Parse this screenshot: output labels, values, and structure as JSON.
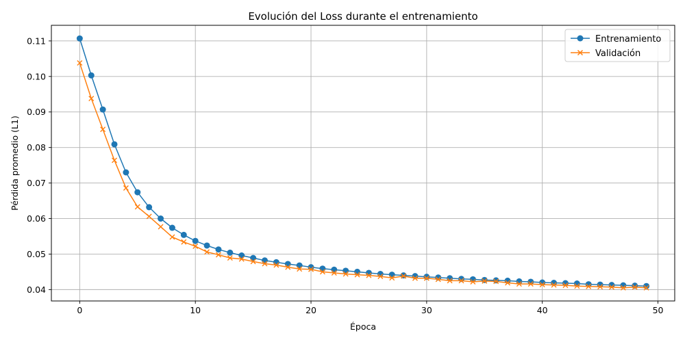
{
  "chart_data": {
    "type": "line",
    "title": "Evolución del Loss durante el entrenamiento",
    "xlabel": "Época",
    "ylabel": "Pérdida promedio (L1)",
    "xlim": [
      -2.45,
      51.45
    ],
    "ylim": [
      0.0368,
      0.1144
    ],
    "xticks": [
      0,
      10,
      20,
      30,
      40,
      50
    ],
    "yticks": [
      0.04,
      0.05,
      0.06,
      0.07,
      0.08,
      0.09,
      0.1,
      0.11
    ],
    "ytick_labels": [
      "0.04",
      "0.05",
      "0.06",
      "0.07",
      "0.08",
      "0.09",
      "0.10",
      "0.11"
    ],
    "grid": true,
    "legend_position": "top-right",
    "x": [
      0,
      1,
      2,
      3,
      4,
      5,
      6,
      7,
      8,
      9,
      10,
      11,
      12,
      13,
      14,
      15,
      16,
      17,
      18,
      19,
      20,
      21,
      22,
      23,
      24,
      25,
      26,
      27,
      28,
      29,
      30,
      31,
      32,
      33,
      34,
      35,
      36,
      37,
      38,
      39,
      40,
      41,
      42,
      43,
      44,
      45,
      46,
      47,
      48,
      49
    ],
    "series": [
      {
        "name": "Entrenamiento",
        "color": "#1f77b4",
        "marker": "circle",
        "values": [
          0.1107,
          0.1003,
          0.0907,
          0.0809,
          0.073,
          0.0674,
          0.0632,
          0.06,
          0.0574,
          0.0554,
          0.0537,
          0.0524,
          0.0513,
          0.0504,
          0.0496,
          0.0489,
          0.0482,
          0.0477,
          0.0472,
          0.0468,
          0.0463,
          0.0459,
          0.0456,
          0.0453,
          0.045,
          0.0447,
          0.0444,
          0.0442,
          0.044,
          0.0438,
          0.0436,
          0.0434,
          0.0432,
          0.043,
          0.0429,
          0.0427,
          0.0426,
          0.0425,
          0.0423,
          0.0422,
          0.042,
          0.0419,
          0.0418,
          0.0417,
          0.0415,
          0.0414,
          0.0413,
          0.0412,
          0.0411,
          0.041
        ]
      },
      {
        "name": "Validación",
        "color": "#ff7f0e",
        "marker": "x",
        "values": [
          0.1038,
          0.0938,
          0.0851,
          0.0764,
          0.0686,
          0.0633,
          0.0606,
          0.0577,
          0.0548,
          0.0534,
          0.0522,
          0.0506,
          0.0498,
          0.0489,
          0.0486,
          0.0479,
          0.0473,
          0.0469,
          0.0463,
          0.0458,
          0.0457,
          0.045,
          0.0447,
          0.0444,
          0.0442,
          0.044,
          0.0437,
          0.0433,
          0.0438,
          0.0432,
          0.0432,
          0.0429,
          0.0425,
          0.0425,
          0.0422,
          0.0424,
          0.0423,
          0.0419,
          0.0416,
          0.0416,
          0.0414,
          0.0413,
          0.0412,
          0.041,
          0.0409,
          0.0408,
          0.0407,
          0.0405,
          0.0407,
          0.0405
        ]
      }
    ]
  }
}
